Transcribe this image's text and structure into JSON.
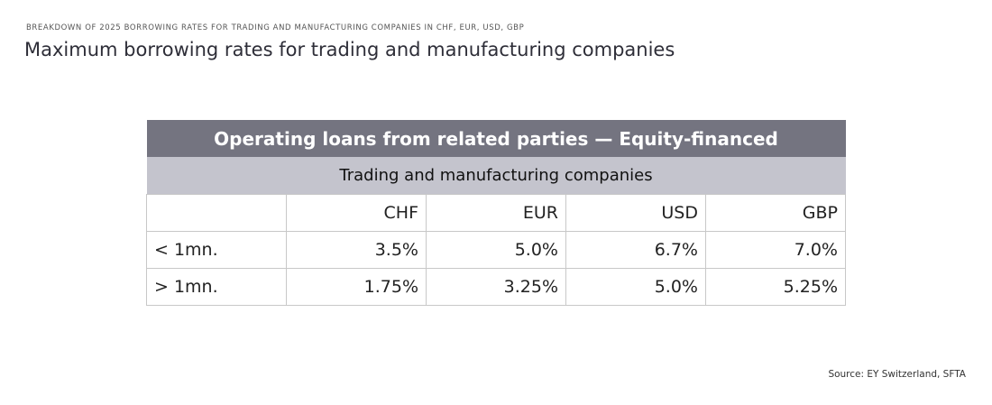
{
  "header": {
    "eyebrow": "BREAKDOWN OF 2025 BORROWING RATES FOR TRADING AND MANUFACTURING COMPANIES IN CHF, EUR, USD, GBP",
    "title": "Maximum borrowing rates for trading and manufacturing companies"
  },
  "table": {
    "title": "Operating loans from related parties — Equity-financed",
    "subtitle": "Trading and manufacturing companies",
    "columns": [
      "CHF",
      "EUR",
      "USD",
      "GBP"
    ],
    "rows": [
      {
        "label": "< 1mn.",
        "cells": [
          "3.5%",
          "5.0%",
          "6.7%",
          "7.0%"
        ]
      },
      {
        "label": "> 1mn.",
        "cells": [
          "1.75%",
          "3.25%",
          "5.0%",
          "5.25%"
        ]
      }
    ]
  },
  "footer": {
    "source": "Source: EY Switzerland, SFTA"
  }
}
